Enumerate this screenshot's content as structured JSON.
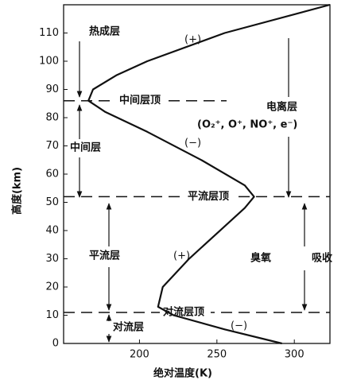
{
  "chart_data": {
    "type": "line",
    "x_label": "绝对温度(K)",
    "y_label": "高度(km)",
    "xlim": [
      151,
      323
    ],
    "ylim": [
      0,
      120
    ],
    "xticks": [
      200,
      250,
      300
    ],
    "yticks": [
      0,
      10,
      20,
      30,
      40,
      50,
      60,
      70,
      80,
      90,
      100,
      110
    ],
    "grid": false,
    "color": "#111111",
    "series": [
      {
        "x": [
          292,
          255,
          222,
          212,
          215,
          232,
          252,
          268,
          274,
          268,
          240,
          205,
          178,
          167,
          170,
          185,
          205,
          255,
          323
        ],
        "values": [
          0,
          5,
          10,
          13,
          20,
          30,
          40,
          48,
          52,
          56,
          65,
          75,
          82,
          86,
          90,
          95,
          100,
          110,
          120
        ]
      }
    ],
    "boundaries": [
      {
        "label": "中间层顶",
        "altitude": 86
      },
      {
        "label": "平流层顶",
        "altitude": 52
      },
      {
        "label": "对流层顶",
        "altitude": 11
      }
    ],
    "annotations": [
      "热成层",
      "(+)",
      "中间层",
      "(−)",
      "平流层",
      "(+)",
      "对流层",
      "(−)",
      "电离层",
      "(O₂⁺, O⁺, NO⁺, e⁻)",
      "臭氧",
      "吸收"
    ]
  }
}
